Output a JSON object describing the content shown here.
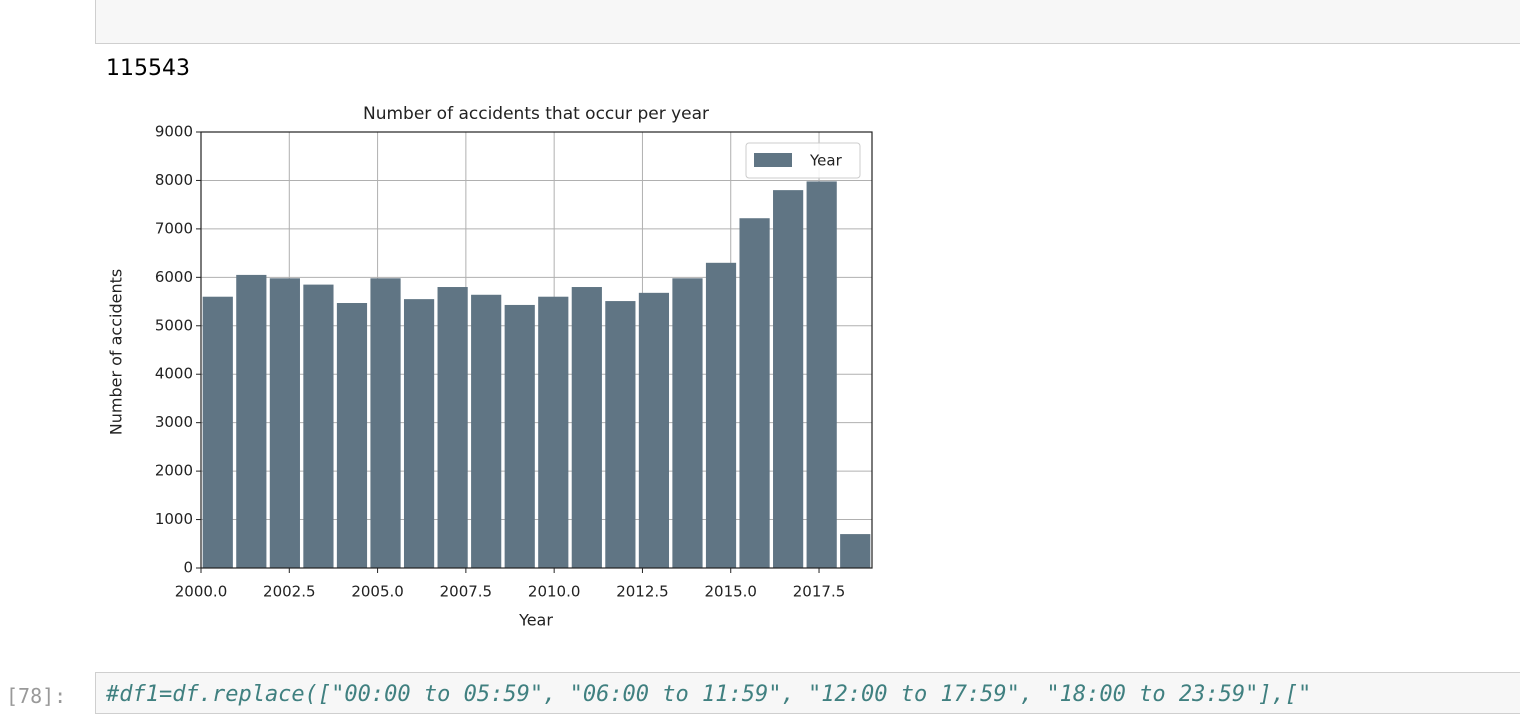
{
  "output": {
    "text": "115543"
  },
  "chart_data": {
    "type": "histogram",
    "title": "Number of accidents that occur per year",
    "x_label": "Year",
    "y_label": "Number of accidents",
    "bins": [
      2000,
      2000.95,
      2001.9,
      2002.85,
      2003.8,
      2004.75,
      2005.7,
      2006.65,
      2007.6,
      2008.55,
      2009.5,
      2010.45,
      2011.4,
      2012.35,
      2013.3,
      2014.25,
      2015.2,
      2016.15,
      2017.1,
      2018.05,
      2019
    ],
    "series": [
      {
        "name": "Year",
        "color": "#607584",
        "values": [
          5600,
          6050,
          5980,
          5850,
          5470,
          5980,
          5550,
          5800,
          5640,
          5430,
          5600,
          5800,
          5510,
          5680,
          5980,
          6300,
          7220,
          7800,
          7980,
          700
        ]
      }
    ],
    "xlim": [
      2000,
      2019
    ],
    "ylim": [
      0,
      9000
    ],
    "xticks": [
      {
        "value": 2000,
        "label": "2000.0"
      },
      {
        "value": 2002.5,
        "label": "2002.5"
      },
      {
        "value": 2005,
        "label": "2005.0"
      },
      {
        "value": 2007.5,
        "label": "2007.5"
      },
      {
        "value": 2010,
        "label": "2010.0"
      },
      {
        "value": 2012.5,
        "label": "2012.5"
      },
      {
        "value": 2015,
        "label": "2015.0"
      },
      {
        "value": 2017.5,
        "label": "2017.5"
      }
    ],
    "yticks": [
      0,
      1000,
      2000,
      3000,
      4000,
      5000,
      6000,
      7000,
      8000,
      9000
    ],
    "grid": true,
    "legend": "upper right"
  },
  "next_cell": {
    "prompt": "[78]:",
    "code": "#df1=df.replace([\"00:00 to 05:59\", \"06:00 to 11:59\", \"12:00 to 17:59\", \"18:00 to 23:59\"],[\""
  }
}
